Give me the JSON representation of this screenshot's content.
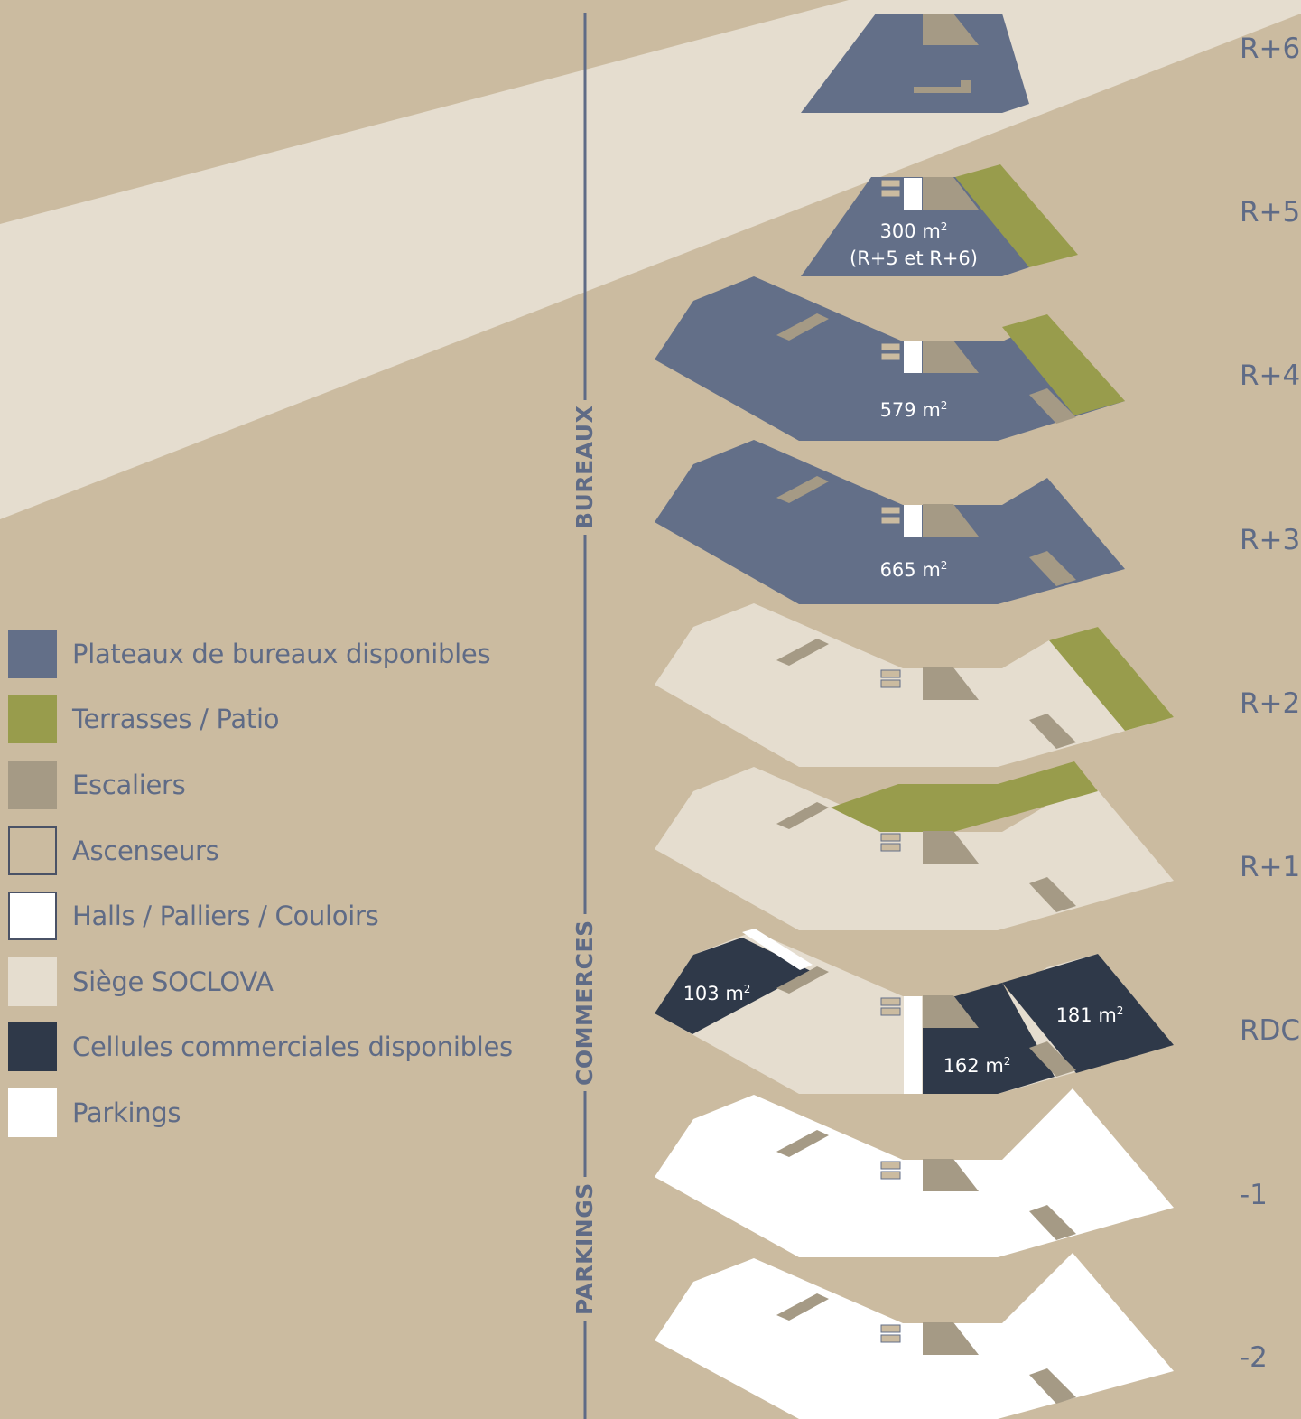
{
  "colors": {
    "background": "#cbbba0",
    "bureaux": "#636f88",
    "terrasses": "#989c4c",
    "escaliers": "#a59a85",
    "ascenseurs": "#cbbba0",
    "halls": "#ffffff",
    "siege": "#e5ddcf",
    "commerces": "#2f3949",
    "parkings": "#ffffff",
    "text": "#5f6b86"
  },
  "legend": [
    {
      "label": "Plateaux de bureaux disponibles",
      "color": "#636f88"
    },
    {
      "label": "Terrasses / Patio",
      "color": "#989c4c"
    },
    {
      "label": "Escaliers",
      "color": "#a59a85"
    },
    {
      "label": "Ascenseurs",
      "color": "#cbbba0"
    },
    {
      "label": "Halls / Palliers / Couloirs",
      "color": "#ffffff"
    },
    {
      "label": "Siège SOCLOVA",
      "color": "#e5ddcf"
    },
    {
      "label": "Cellules commerciales disponibles",
      "color": "#2f3949"
    },
    {
      "label": "Parkings",
      "color": "#ffffff"
    }
  ],
  "sections": {
    "bureaux": "BUREAUX",
    "commerces": "COMMERCES",
    "parkings": "PARKINGS"
  },
  "floors": [
    "R+6",
    "R+5",
    "R+4",
    "R+3",
    "R+2",
    "R+1",
    "RDC",
    "-1",
    "-2"
  ],
  "areas": {
    "r5_value": "300 m",
    "r5_sup": "2",
    "r5_note": "(R+5 et R+6)",
    "r4_value": "579 m",
    "r4_sup": "2",
    "r3_value": "665 m",
    "r3_sup": "2",
    "rdc_left_value": "103 m",
    "rdc_left_sup": "2",
    "rdc_mid_value": "162 m",
    "rdc_mid_sup": "2",
    "rdc_right_value": "181 m",
    "rdc_right_sup": "2"
  }
}
